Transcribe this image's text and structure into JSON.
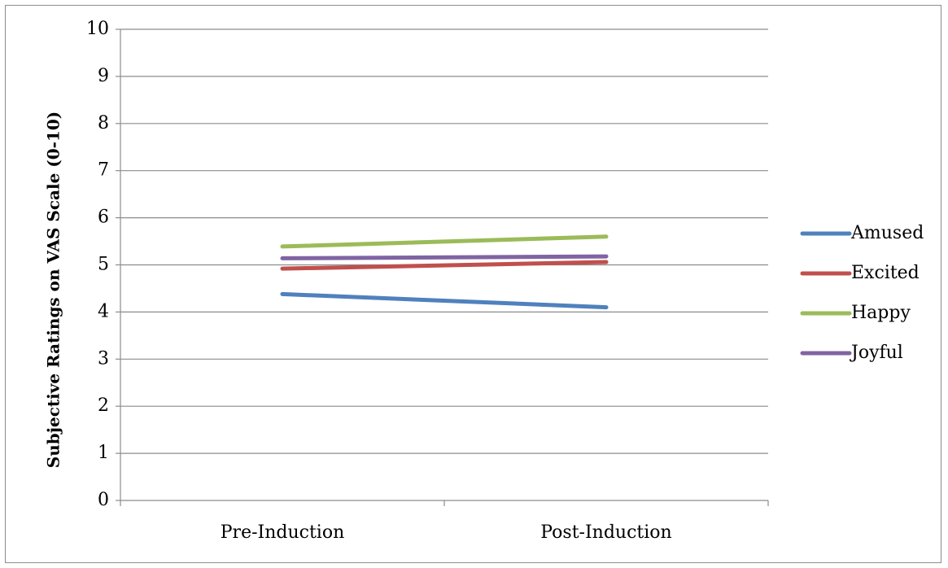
{
  "chart_data": {
    "type": "line",
    "title": "",
    "xlabel": "",
    "ylabel": "Subjective Ratings on VAS Scale (0-10)",
    "categories": [
      "Pre-Induction",
      "Post-Induction"
    ],
    "ylim": [
      0,
      10
    ],
    "yticks": [
      "0",
      "1",
      "2",
      "3",
      "4",
      "5",
      "6",
      "7",
      "8",
      "9",
      "10"
    ],
    "grid": "horizontal",
    "legend_position": "right",
    "series": [
      {
        "name": "Amused",
        "color": "#4F81BD",
        "values": [
          4.38,
          4.1
        ]
      },
      {
        "name": "Excited",
        "color": "#C0504D",
        "values": [
          4.92,
          5.06
        ]
      },
      {
        "name": "Happy",
        "color": "#9BBB59",
        "values": [
          5.39,
          5.6
        ]
      },
      {
        "name": "Joyful",
        "color": "#8064A2",
        "values": [
          5.14,
          5.18
        ]
      }
    ]
  }
}
